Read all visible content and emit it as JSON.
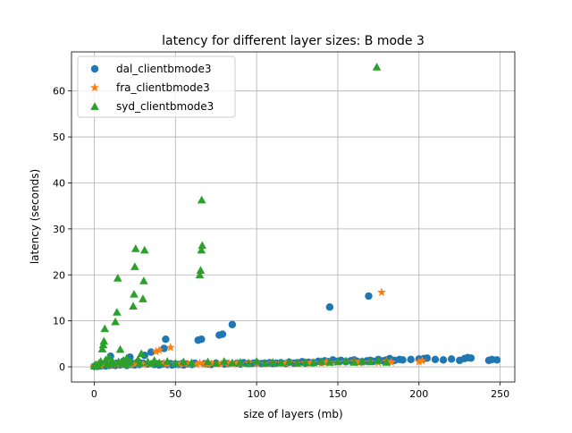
{
  "chart_data": {
    "type": "scatter",
    "title": "latency for different layer sizes: B mode 3",
    "xlabel": "size of layers (mb)",
    "ylabel": "latency (seconds)",
    "xlim": [
      -14,
      259
    ],
    "ylim": [
      -3.3,
      68.5
    ],
    "x_ticks": [
      0,
      50,
      100,
      150,
      200,
      250
    ],
    "y_ticks": [
      0,
      10,
      20,
      30,
      40,
      50,
      60
    ],
    "x_tick_labels": [
      "0",
      "50",
      "100",
      "150",
      "200",
      "250"
    ],
    "y_tick_labels": [
      "0",
      "10",
      "20",
      "30",
      "40",
      "50",
      "60"
    ],
    "grid": true,
    "legend_position": "top-left",
    "series": [
      {
        "name": "dal_clientbmode3",
        "marker": "circle",
        "color": "#1f77b4",
        "points": [
          [
            0,
            0.1
          ],
          [
            1,
            0.2
          ],
          [
            2,
            0.1
          ],
          [
            3,
            0.3
          ],
          [
            4,
            0.2
          ],
          [
            5,
            0.4
          ],
          [
            6,
            0.3
          ],
          [
            7,
            0.2
          ],
          [
            8,
            0.5
          ],
          [
            9,
            0.3
          ],
          [
            10,
            2.3
          ],
          [
            11,
            0.4
          ],
          [
            12,
            0.6
          ],
          [
            13,
            0.3
          ],
          [
            14,
            0.8
          ],
          [
            15,
            0.5
          ],
          [
            16,
            0.4
          ],
          [
            17,
            0.6
          ],
          [
            18,
            1.2
          ],
          [
            19,
            0.5
          ],
          [
            20,
            0.3
          ],
          [
            21,
            1.8
          ],
          [
            22,
            2.1
          ],
          [
            23,
            0.5
          ],
          [
            24,
            0.7
          ],
          [
            25,
            0.4
          ],
          [
            26,
            0.6
          ],
          [
            27,
            1.1
          ],
          [
            28,
            0.5
          ],
          [
            30,
            0.8
          ],
          [
            31,
            2.5
          ],
          [
            33,
            0.6
          ],
          [
            35,
            3.2
          ],
          [
            37,
            0.5
          ],
          [
            38,
            0.7
          ],
          [
            40,
            0.4
          ],
          [
            42,
            0.6
          ],
          [
            43,
            4.0
          ],
          [
            44,
            6.0
          ],
          [
            45,
            0.5
          ],
          [
            47,
            0.7
          ],
          [
            48,
            0.4
          ],
          [
            50,
            0.6
          ],
          [
            52,
            0.5
          ],
          [
            54,
            0.7
          ],
          [
            55,
            0.4
          ],
          [
            57,
            0.6
          ],
          [
            60,
            0.5
          ],
          [
            62,
            0.8
          ],
          [
            64,
            5.8
          ],
          [
            66,
            6.0
          ],
          [
            68,
            0.7
          ],
          [
            70,
            0.6
          ],
          [
            72,
            0.5
          ],
          [
            75,
            0.8
          ],
          [
            77,
            6.9
          ],
          [
            79,
            7.1
          ],
          [
            80,
            0.6
          ],
          [
            82,
            0.7
          ],
          [
            85,
            9.2
          ],
          [
            88,
            0.8
          ],
          [
            90,
            0.6
          ],
          [
            92,
            0.9
          ],
          [
            95,
            0.7
          ],
          [
            98,
            0.8
          ],
          [
            100,
            0.9
          ],
          [
            103,
            0.7
          ],
          [
            105,
            0.8
          ],
          [
            108,
            0.9
          ],
          [
            110,
            0.7
          ],
          [
            112,
            0.8
          ],
          [
            115,
            0.9
          ],
          [
            118,
            0.7
          ],
          [
            120,
            1.0
          ],
          [
            123,
            0.8
          ],
          [
            125,
            0.9
          ],
          [
            128,
            1.1
          ],
          [
            130,
            0.8
          ],
          [
            132,
            1.0
          ],
          [
            135,
            0.9
          ],
          [
            138,
            1.2
          ],
          [
            140,
            1.0
          ],
          [
            142,
            1.3
          ],
          [
            144,
            1.1
          ],
          [
            145,
            13.0
          ],
          [
            147,
            1.5
          ],
          [
            150,
            1.2
          ],
          [
            152,
            1.4
          ],
          [
            155,
            1.1
          ],
          [
            158,
            1.3
          ],
          [
            160,
            1.5
          ],
          [
            162,
            1.2
          ],
          [
            165,
            1.1
          ],
          [
            168,
            1.3
          ],
          [
            169,
            15.4
          ],
          [
            170,
            1.4
          ],
          [
            172,
            1.2
          ],
          [
            175,
            1.6
          ],
          [
            178,
            1.3
          ],
          [
            180,
            1.5
          ],
          [
            182,
            1.8
          ],
          [
            185,
            1.4
          ],
          [
            188,
            1.6
          ],
          [
            190,
            1.5
          ],
          [
            195,
            1.6
          ],
          [
            200,
            1.7
          ],
          [
            203,
            1.8
          ],
          [
            205,
            1.9
          ],
          [
            210,
            1.6
          ],
          [
            215,
            1.5
          ],
          [
            220,
            1.7
          ],
          [
            225,
            1.4
          ],
          [
            228,
            1.8
          ],
          [
            230,
            2.0
          ],
          [
            232,
            1.9
          ],
          [
            243,
            1.4
          ],
          [
            245,
            1.6
          ],
          [
            248,
            1.5
          ]
        ]
      },
      {
        "name": "fra_clientbmode3",
        "marker": "star",
        "color": "#ff7f0e",
        "points": [
          [
            0,
            0.2
          ],
          [
            2,
            0.4
          ],
          [
            4,
            0.3
          ],
          [
            6,
            0.6
          ],
          [
            8,
            0.5
          ],
          [
            10,
            0.4
          ],
          [
            12,
            0.8
          ],
          [
            14,
            0.5
          ],
          [
            16,
            0.6
          ],
          [
            18,
            0.4
          ],
          [
            20,
            0.7
          ],
          [
            22,
            0.5
          ],
          [
            25,
            0.6
          ],
          [
            28,
            0.8
          ],
          [
            30,
            0.5
          ],
          [
            33,
            0.7
          ],
          [
            35,
            0.6
          ],
          [
            38,
            3.3
          ],
          [
            40,
            3.6
          ],
          [
            43,
            0.8
          ],
          [
            45,
            0.6
          ],
          [
            47,
            4.2
          ],
          [
            50,
            0.7
          ],
          [
            53,
            0.5
          ],
          [
            55,
            0.8
          ],
          [
            58,
            0.6
          ],
          [
            60,
            0.7
          ],
          [
            63,
            0.5
          ],
          [
            65,
            0.8
          ],
          [
            68,
            0.6
          ],
          [
            70,
            0.5
          ],
          [
            72,
            0.7
          ],
          [
            75,
            0.8
          ],
          [
            78,
            0.6
          ],
          [
            80,
            0.9
          ],
          [
            83,
            0.7
          ],
          [
            85,
            0.6
          ],
          [
            88,
            0.8
          ],
          [
            90,
            0.7
          ],
          [
            95,
            0.9
          ],
          [
            100,
            0.8
          ],
          [
            105,
            0.7
          ],
          [
            110,
            0.9
          ],
          [
            115,
            0.8
          ],
          [
            118,
            0.7
          ],
          [
            120,
            1.0
          ],
          [
            125,
            0.8
          ],
          [
            130,
            0.9
          ],
          [
            133,
            0.7
          ],
          [
            135,
            1.0
          ],
          [
            140,
            0.8
          ],
          [
            143,
            1.1
          ],
          [
            145,
            0.9
          ],
          [
            150,
            1.0
          ],
          [
            155,
            1.1
          ],
          [
            160,
            1.2
          ],
          [
            163,
            0.9
          ],
          [
            165,
            1.0
          ],
          [
            170,
            1.1
          ],
          [
            175,
            0.9
          ],
          [
            177,
            16.2
          ],
          [
            180,
            1.2
          ],
          [
            183,
            1.0
          ],
          [
            200,
            1.1
          ],
          [
            202,
            1.3
          ]
        ]
      },
      {
        "name": "syd_clientbmode3",
        "marker": "triangle",
        "color": "#2ca02c",
        "points": [
          [
            0,
            0.2
          ],
          [
            1,
            0.5
          ],
          [
            2,
            0.3
          ],
          [
            3,
            0.8
          ],
          [
            4,
            1.2
          ],
          [
            5,
            3.9
          ],
          [
            5.5,
            4.8
          ],
          [
            6,
            5.6
          ],
          [
            6.5,
            8.3
          ],
          [
            7,
            1.5
          ],
          [
            8,
            0.6
          ],
          [
            9,
            2.1
          ],
          [
            10,
            0.9
          ],
          [
            11,
            1.3
          ],
          [
            12,
            0.7
          ],
          [
            13,
            9.8
          ],
          [
            14,
            11.9
          ],
          [
            14.5,
            19.3
          ],
          [
            15,
            1.1
          ],
          [
            16,
            3.8
          ],
          [
            17,
            0.8
          ],
          [
            18,
            1.4
          ],
          [
            19,
            0.6
          ],
          [
            20,
            1.9
          ],
          [
            21,
            0.9
          ],
          [
            22,
            1.2
          ],
          [
            24,
            13.2
          ],
          [
            24.5,
            15.8
          ],
          [
            25,
            21.8
          ],
          [
            25.5,
            25.7
          ],
          [
            27,
            1.6
          ],
          [
            28,
            0.8
          ],
          [
            29,
            2.9
          ],
          [
            30,
            14.8
          ],
          [
            30.5,
            18.7
          ],
          [
            31,
            25.4
          ],
          [
            33,
            1.1
          ],
          [
            35,
            0.7
          ],
          [
            37,
            1.4
          ],
          [
            40,
            0.9
          ],
          [
            45,
            1.2
          ],
          [
            50,
            0.8
          ],
          [
            55,
            1.1
          ],
          [
            60,
            0.9
          ],
          [
            65,
            20.0
          ],
          [
            65.5,
            21.0
          ],
          [
            66,
            25.4
          ],
          [
            66.5,
            26.4
          ],
          [
            66.2,
            36.3
          ],
          [
            70,
            1.1
          ],
          [
            75,
            0.8
          ],
          [
            80,
            1.2
          ],
          [
            85,
            0.9
          ],
          [
            90,
            1.0
          ],
          [
            95,
            0.7
          ],
          [
            100,
            1.2
          ],
          [
            105,
            0.8
          ],
          [
            110,
            1.0
          ],
          [
            115,
            0.9
          ],
          [
            120,
            1.1
          ],
          [
            125,
            0.8
          ],
          [
            130,
            1.0
          ],
          [
            135,
            0.9
          ],
          [
            140,
            1.2
          ],
          [
            145,
            1.0
          ],
          [
            150,
            1.1
          ],
          [
            155,
            1.3
          ],
          [
            160,
            1.0
          ],
          [
            165,
            1.2
          ],
          [
            170,
            1.1
          ],
          [
            174,
            65.2
          ],
          [
            175,
            1.4
          ],
          [
            180,
            1.0
          ]
        ]
      }
    ]
  }
}
